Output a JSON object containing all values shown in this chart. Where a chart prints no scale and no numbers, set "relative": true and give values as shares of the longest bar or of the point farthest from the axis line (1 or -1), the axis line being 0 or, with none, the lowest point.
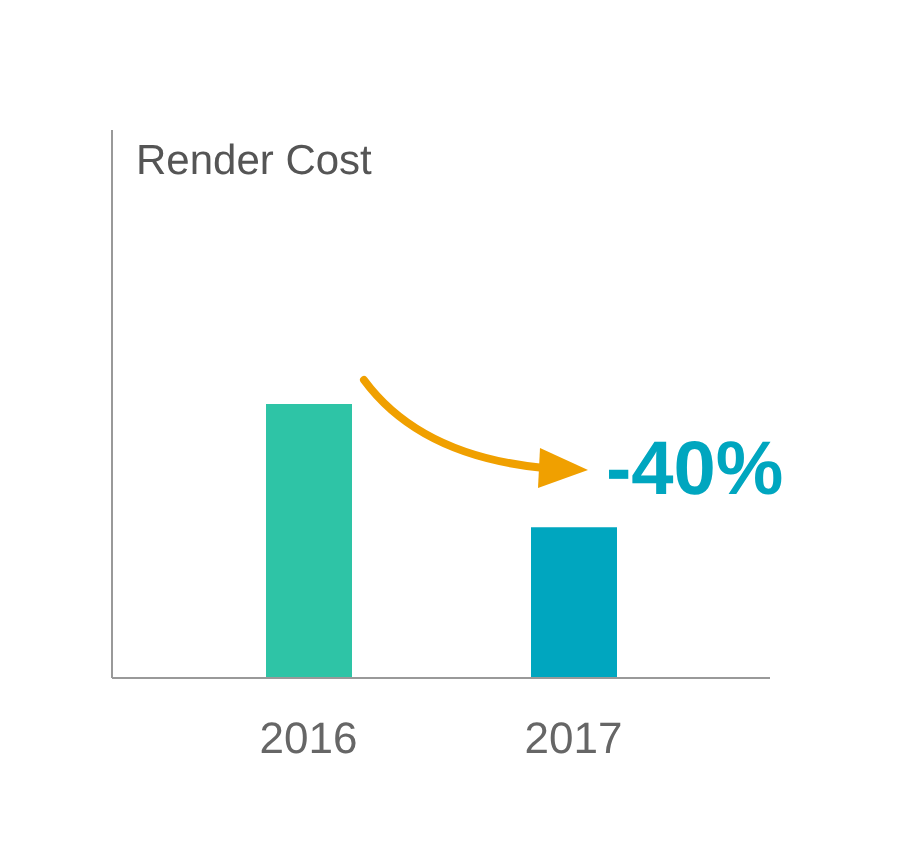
{
  "chart_data": {
    "type": "bar",
    "title": "Render Cost",
    "relative": true,
    "categories": [
      "2016",
      "2017"
    ],
    "values": [
      1,
      0.55
    ],
    "colors": [
      "#2ec4a6",
      "#00a6bf"
    ],
    "annotations": [
      "-40%"
    ],
    "grid": false,
    "legend": false
  }
}
